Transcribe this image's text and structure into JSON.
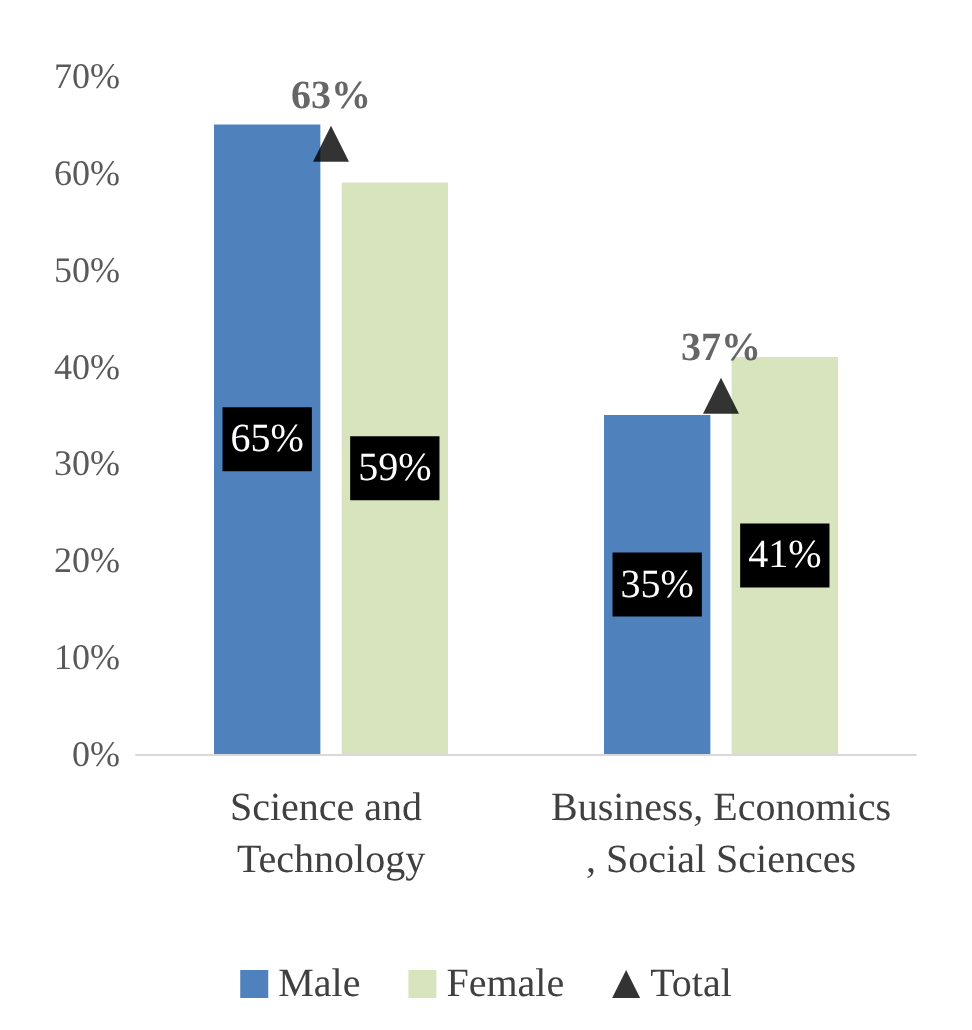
{
  "chart_data": {
    "type": "bar",
    "categories": [
      "Science and Technology",
      "Business, Economics, Social Sciences"
    ],
    "series": [
      {
        "name": "Male",
        "color": "#4f81bd",
        "values": [
          65,
          35
        ],
        "value_labels": [
          "65%",
          "35%"
        ]
      },
      {
        "name": "Female",
        "color": "#d7e4bd",
        "values": [
          59,
          41
        ],
        "value_labels": [
          "59%",
          "41%"
        ]
      },
      {
        "name": "Total",
        "type": "scatter",
        "marker": "triangle",
        "color": "#000000",
        "x": [
          "Science and Technology",
          "Business, Economics, Social Sciences"
        ],
        "values": [
          63,
          37
        ],
        "value_labels": [
          "63%",
          "37%"
        ]
      }
    ],
    "ylim": [
      0,
      70
    ],
    "yticks": [
      {
        "value": 0,
        "label": "0%"
      },
      {
        "value": 10,
        "label": "10%"
      },
      {
        "value": 20,
        "label": "20%"
      },
      {
        "value": 30,
        "label": "30%"
      },
      {
        "value": 40,
        "label": "40%"
      },
      {
        "value": 50,
        "label": "50%"
      },
      {
        "value": 60,
        "label": "60%"
      },
      {
        "value": 70,
        "label": "70%"
      }
    ],
    "grid": false,
    "legend": "bottom"
  }
}
